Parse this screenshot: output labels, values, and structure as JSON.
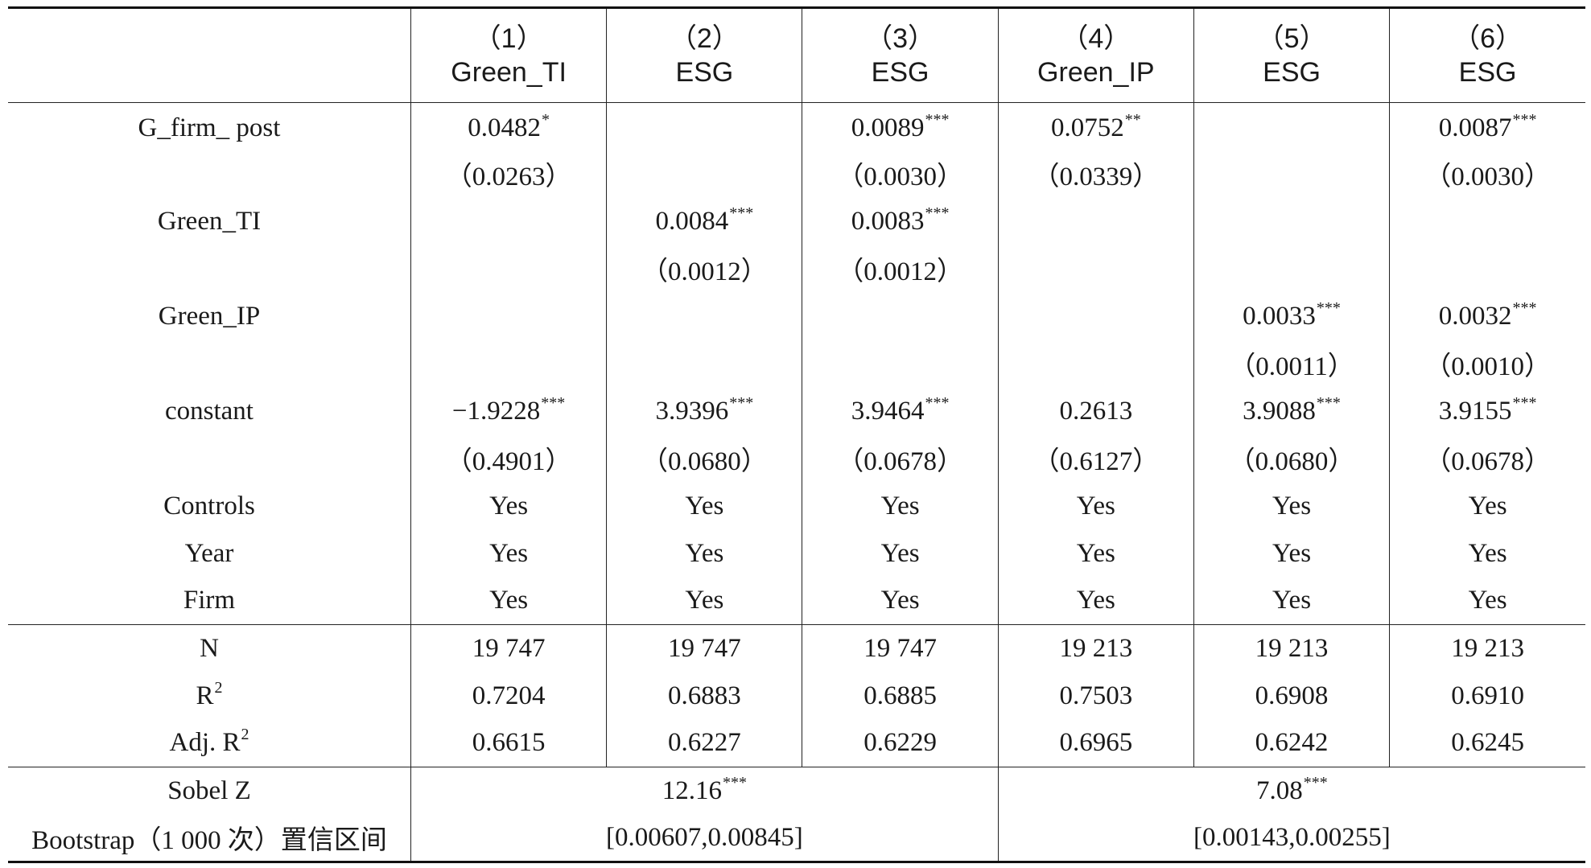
{
  "header": {
    "columns": [
      {
        "num": "（1）",
        "dep": "Green_TI"
      },
      {
        "num": "（2）",
        "dep": "ESG"
      },
      {
        "num": "（3）",
        "dep": "ESG"
      },
      {
        "num": "（4）",
        "dep": "Green_IP"
      },
      {
        "num": "（5）",
        "dep": "ESG"
      },
      {
        "num": "（6）",
        "dep": "ESG"
      }
    ]
  },
  "rows": [
    {
      "label": "G_firm_ post",
      "cells": [
        {
          "v": "0.0482",
          "s": "*"
        },
        {
          "v": "",
          "s": ""
        },
        {
          "v": "0.0089",
          "s": "***"
        },
        {
          "v": "0.0752",
          "s": "**"
        },
        {
          "v": "",
          "s": ""
        },
        {
          "v": "0.0087",
          "s": "***"
        }
      ]
    },
    {
      "label": "",
      "cells": [
        {
          "v": "（0.0263）",
          "s": ""
        },
        {
          "v": "",
          "s": ""
        },
        {
          "v": "（0.0030）",
          "s": ""
        },
        {
          "v": "（0.0339）",
          "s": ""
        },
        {
          "v": "",
          "s": ""
        },
        {
          "v": "（0.0030）",
          "s": ""
        }
      ]
    },
    {
      "label": "Green_TI",
      "cells": [
        {
          "v": "",
          "s": ""
        },
        {
          "v": "0.0084",
          "s": "***"
        },
        {
          "v": "0.0083",
          "s": "***"
        },
        {
          "v": "",
          "s": ""
        },
        {
          "v": "",
          "s": ""
        },
        {
          "v": "",
          "s": ""
        }
      ]
    },
    {
      "label": "",
      "cells": [
        {
          "v": "",
          "s": ""
        },
        {
          "v": "（0.0012）",
          "s": ""
        },
        {
          "v": "（0.0012）",
          "s": ""
        },
        {
          "v": "",
          "s": ""
        },
        {
          "v": "",
          "s": ""
        },
        {
          "v": "",
          "s": ""
        }
      ]
    },
    {
      "label": "Green_IP",
      "cells": [
        {
          "v": "",
          "s": ""
        },
        {
          "v": "",
          "s": ""
        },
        {
          "v": "",
          "s": ""
        },
        {
          "v": "",
          "s": ""
        },
        {
          "v": "0.0033",
          "s": "***"
        },
        {
          "v": "0.0032",
          "s": "***"
        }
      ]
    },
    {
      "label": "",
      "cells": [
        {
          "v": "",
          "s": ""
        },
        {
          "v": "",
          "s": ""
        },
        {
          "v": "",
          "s": ""
        },
        {
          "v": "",
          "s": ""
        },
        {
          "v": "（0.0011）",
          "s": ""
        },
        {
          "v": "（0.0010）",
          "s": ""
        }
      ]
    },
    {
      "label": "constant",
      "cells": [
        {
          "v": "−1.9228",
          "s": "***"
        },
        {
          "v": "3.9396",
          "s": "***"
        },
        {
          "v": "3.9464",
          "s": "***"
        },
        {
          "v": "0.2613",
          "s": ""
        },
        {
          "v": "3.9088",
          "s": "***"
        },
        {
          "v": "3.9155",
          "s": "***"
        }
      ]
    },
    {
      "label": "",
      "cells": [
        {
          "v": "（0.4901）",
          "s": ""
        },
        {
          "v": "（0.0680）",
          "s": ""
        },
        {
          "v": "（0.0678）",
          "s": ""
        },
        {
          "v": "（0.6127）",
          "s": ""
        },
        {
          "v": "（0.0680）",
          "s": ""
        },
        {
          "v": "（0.0678）",
          "s": ""
        }
      ]
    },
    {
      "label": "Controls",
      "cells": [
        {
          "v": "Yes",
          "s": ""
        },
        {
          "v": "Yes",
          "s": ""
        },
        {
          "v": "Yes",
          "s": ""
        },
        {
          "v": "Yes",
          "s": ""
        },
        {
          "v": "Yes",
          "s": ""
        },
        {
          "v": "Yes",
          "s": ""
        }
      ]
    },
    {
      "label": "Year",
      "cells": [
        {
          "v": "Yes",
          "s": ""
        },
        {
          "v": "Yes",
          "s": ""
        },
        {
          "v": "Yes",
          "s": ""
        },
        {
          "v": "Yes",
          "s": ""
        },
        {
          "v": "Yes",
          "s": ""
        },
        {
          "v": "Yes",
          "s": ""
        }
      ]
    },
    {
      "label": "Firm",
      "cells": [
        {
          "v": "Yes",
          "s": ""
        },
        {
          "v": "Yes",
          "s": ""
        },
        {
          "v": "Yes",
          "s": ""
        },
        {
          "v": "Yes",
          "s": ""
        },
        {
          "v": "Yes",
          "s": ""
        },
        {
          "v": "Yes",
          "s": ""
        }
      ]
    }
  ],
  "stats": [
    {
      "label": "N",
      "label_sup": "",
      "cells": [
        "19 747",
        "19 747",
        "19 747",
        "19 213",
        "19 213",
        "19 213"
      ]
    },
    {
      "label": "R",
      "label_sup": "2",
      "cells": [
        "0.7204",
        "0.6883",
        "0.6885",
        "0.7503",
        "0.6908",
        "0.6910"
      ]
    },
    {
      "label": "Adj. R",
      "label_sup": "2",
      "cells": [
        "0.6615",
        "0.6227",
        "0.6229",
        "0.6965",
        "0.6242",
        "0.6245"
      ]
    }
  ],
  "tests": {
    "sobel": {
      "label": "Sobel Z",
      "left": {
        "v": "12.16",
        "s": "***"
      },
      "right": {
        "v": "7.08",
        "s": "***"
      }
    },
    "bootstrap": {
      "label": "Bootstrap（1 000 次）置信区间",
      "left": "[0.00607,0.00845]",
      "right": "[0.00143,0.00255]"
    }
  }
}
